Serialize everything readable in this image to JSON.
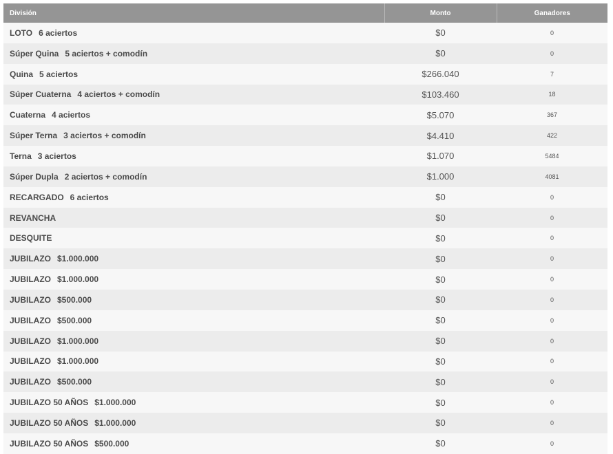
{
  "table": {
    "headers": {
      "division": "División",
      "monto": "Monto",
      "ganadores": "Ganadores"
    },
    "rows": [
      {
        "name": "LOTO",
        "detail": "6 aciertos",
        "monto": "$0",
        "ganadores": "0"
      },
      {
        "name": "Súper Quina",
        "detail": "5 aciertos + comodín",
        "monto": "$0",
        "ganadores": "0"
      },
      {
        "name": "Quina",
        "detail": "5 aciertos",
        "monto": "$266.040",
        "ganadores": "7"
      },
      {
        "name": "Súper Cuaterna",
        "detail": "4 aciertos + comodín",
        "monto": "$103.460",
        "ganadores": "18"
      },
      {
        "name": "Cuaterna",
        "detail": "4 aciertos",
        "monto": "$5.070",
        "ganadores": "367"
      },
      {
        "name": "Súper Terna",
        "detail": "3 aciertos + comodín",
        "monto": "$4.410",
        "ganadores": "422"
      },
      {
        "name": "Terna",
        "detail": "3 aciertos",
        "monto": "$1.070",
        "ganadores": "5484"
      },
      {
        "name": "Súper Dupla",
        "detail": "2 aciertos + comodín",
        "monto": "$1.000",
        "ganadores": "4081"
      },
      {
        "name": "RECARGADO",
        "detail": "6 aciertos",
        "monto": "$0",
        "ganadores": "0"
      },
      {
        "name": "REVANCHA",
        "detail": "",
        "monto": "$0",
        "ganadores": "0"
      },
      {
        "name": "DESQUITE",
        "detail": "",
        "monto": "$0",
        "ganadores": "0"
      },
      {
        "name": "JUBILAZO",
        "detail": "$1.000.000",
        "monto": "$0",
        "ganadores": "0"
      },
      {
        "name": "JUBILAZO",
        "detail": "$1.000.000",
        "monto": "$0",
        "ganadores": "0"
      },
      {
        "name": "JUBILAZO",
        "detail": "$500.000",
        "monto": "$0",
        "ganadores": "0"
      },
      {
        "name": "JUBILAZO",
        "detail": "$500.000",
        "monto": "$0",
        "ganadores": "0"
      },
      {
        "name": "JUBILAZO",
        "detail": "$1.000.000",
        "monto": "$0",
        "ganadores": "0"
      },
      {
        "name": "JUBILAZO",
        "detail": "$1.000.000",
        "monto": "$0",
        "ganadores": "0"
      },
      {
        "name": "JUBILAZO",
        "detail": "$500.000",
        "monto": "$0",
        "ganadores": "0"
      },
      {
        "name": "JUBILAZO 50 AÑOS",
        "detail": "$1.000.000",
        "monto": "$0",
        "ganadores": "0"
      },
      {
        "name": "JUBILAZO 50 AÑOS",
        "detail": "$1.000.000",
        "monto": "$0",
        "ganadores": "0"
      },
      {
        "name": "JUBILAZO 50 AÑOS",
        "detail": "$500.000",
        "monto": "$0",
        "ganadores": "0"
      }
    ]
  }
}
